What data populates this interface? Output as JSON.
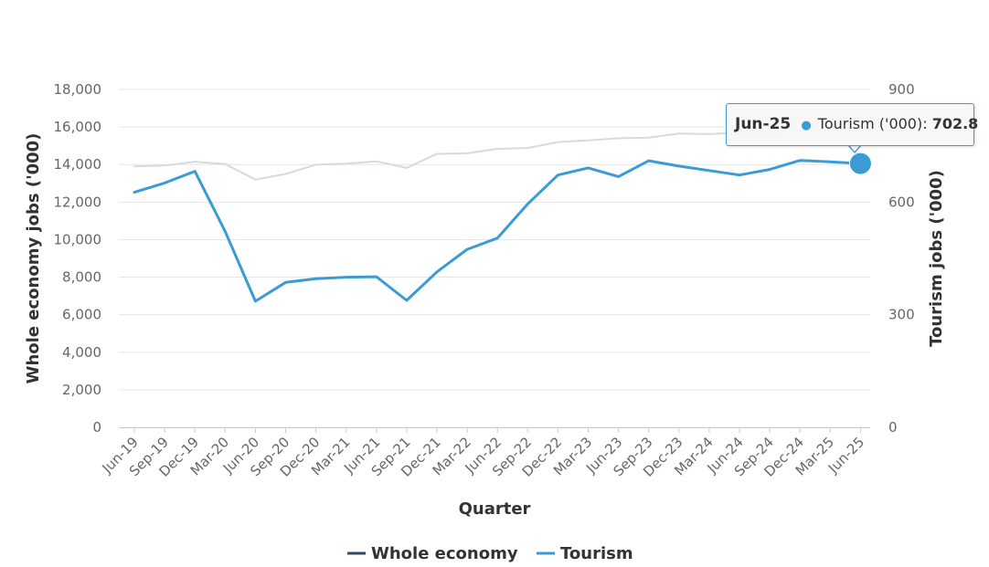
{
  "chart_data": {
    "type": "line",
    "xlabel": "Quarter",
    "ylabel_left": "Whole economy jobs ('000)",
    "ylabel_right": "Tourism jobs ('000)",
    "ylim_left": [
      0,
      18000
    ],
    "ylim_right": [
      0,
      900
    ],
    "yticks_left": [
      "0",
      "2,000",
      "4,000",
      "6,000",
      "8,000",
      "10,000",
      "12,000",
      "14,000",
      "16,000",
      "18,000"
    ],
    "yticks_right": [
      "0",
      "300",
      "600",
      "900"
    ],
    "grid": true,
    "legend_position": "bottom",
    "categories": [
      "Jun-19",
      "Sep-19",
      "Dec-19",
      "Mar-20",
      "Jun-20",
      "Sep-20",
      "Dec-20",
      "Mar-21",
      "Jun-21",
      "Sep-21",
      "Dec-21",
      "Mar-22",
      "Jun-22",
      "Sep-22",
      "Dec-22",
      "Mar-23",
      "Jun-23",
      "Sep-23",
      "Dec-23",
      "Mar-24",
      "Jun-24",
      "Sep-24",
      "Dec-24",
      "Mar-25",
      "Jun-25"
    ],
    "series": [
      {
        "name": "Whole economy",
        "axis": "left",
        "color": "#d5dae1",
        "legend_color": "#2f4b5f",
        "values": [
          13900,
          13950,
          14150,
          14030,
          13200,
          13500,
          13990,
          14050,
          14170,
          13820,
          14570,
          14600,
          14840,
          14880,
          15200,
          15290,
          15400,
          15430,
          15650,
          15620,
          15700,
          15750,
          15800,
          15820,
          15850
        ]
      },
      {
        "name": "Tourism",
        "axis": "right",
        "color": "#3a9bd5",
        "legend_color": "#3a9bd5",
        "values": [
          626,
          651,
          682,
          522,
          336,
          386,
          396,
          400,
          401,
          338,
          414,
          474,
          504,
          595,
          672,
          691,
          668,
          710,
          696,
          684,
          672,
          687,
          711,
          707,
          702.8
        ]
      }
    ]
  },
  "tooltip": {
    "date": "Jun-25",
    "series_label": "Tourism ('000):",
    "value": "702.8",
    "dot_glyph": "●"
  }
}
